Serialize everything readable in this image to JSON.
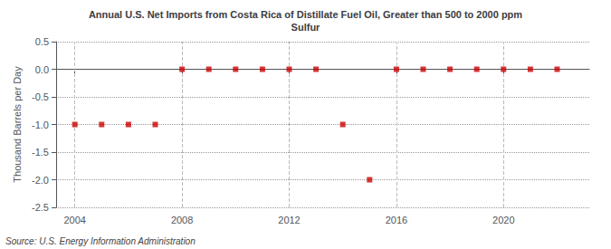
{
  "chart_data": {
    "type": "scatter",
    "title": "Annual U.S. Net Imports from Costa Rica of Distillate Fuel Oil, Greater than 500 to 2000 ppm\nSulfur",
    "ylabel": "Thousand Barrels per Day",
    "source": "Source: U.S. Energy Information Administration",
    "x": [
      2004,
      2005,
      2006,
      2007,
      2008,
      2009,
      2010,
      2011,
      2012,
      2013,
      2014,
      2015,
      2016,
      2017,
      2018,
      2019,
      2020,
      2021,
      2022
    ],
    "values": [
      -1.0,
      -1.0,
      -1.0,
      -1.0,
      0.0,
      0.0,
      0.0,
      0.0,
      0.0,
      0.0,
      -1.0,
      -2.0,
      0.0,
      0.0,
      0.0,
      0.0,
      0.0,
      0.0,
      0.0
    ],
    "color": "#cc0000",
    "marker": "square",
    "xlim": [
      2003.3,
      2023.2
    ],
    "xticks": [
      2004,
      2008,
      2012,
      2016,
      2020
    ],
    "ylim": [
      -2.5,
      0.5
    ],
    "yticks": [
      0.5,
      {
        "value": 0,
        "label": "0.0"
      },
      -0.5,
      {
        "value": -1,
        "label": "-1.0"
      },
      -1.5,
      {
        "value": -2,
        "label": "-2.0"
      },
      -2.5
    ],
    "grid": true
  }
}
